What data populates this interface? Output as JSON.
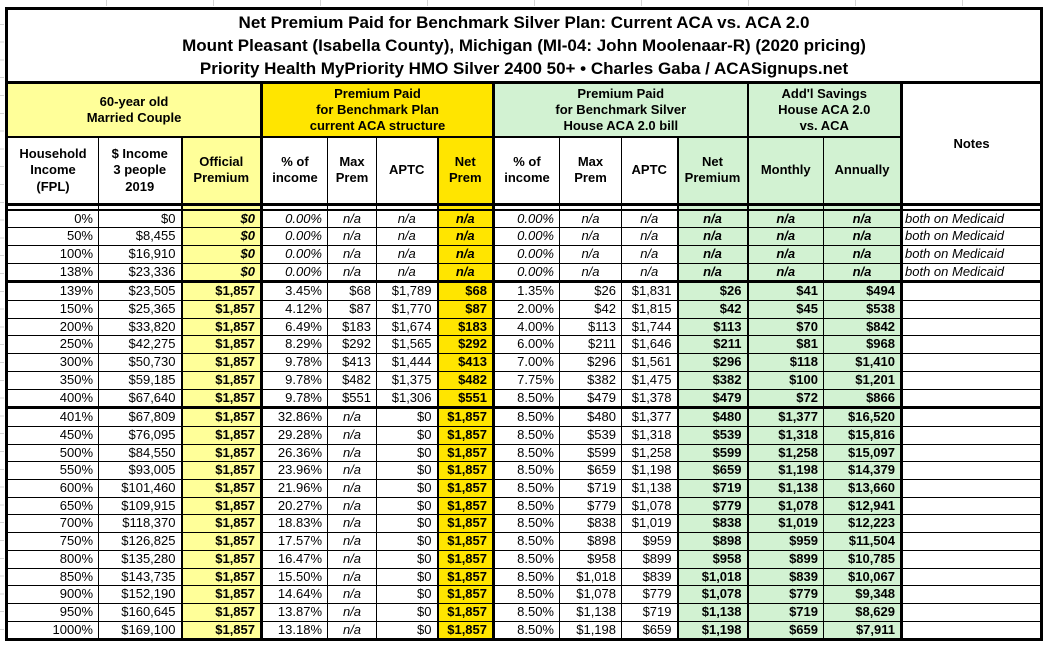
{
  "colors": {
    "light_yellow": "#FFFF99",
    "bright_yellow": "#FFE500",
    "light_green": "#D2F2D2",
    "grid_line": "#D4D4D4",
    "border_black": "#000000"
  },
  "title": {
    "line1": "Net Premium Paid for Benchmark Silver Plan: Current ACA vs. ACA 2.0",
    "line2": "Mount Pleasant (Isabella County), Michigan (MI-04: John Moolenaar-R) (2020 pricing)",
    "line3": "Priority Health MyPriority HMO Silver 2400 50+ • Charles Gaba / ACASignups.net"
  },
  "table": {
    "groups": {
      "demographic": "60-year old\nMarried Couple",
      "current_aca": "Premium Paid\nfor Benchmark Plan\ncurrent ACA structure",
      "aca2": "Premium Paid\nfor Benchmark Silver\nHouse ACA 2.0 bill",
      "savings": "Add'l Savings\nHouse ACA 2.0\nvs. ACA",
      "notes": "Notes"
    },
    "columns": [
      "Household\nIncome\n(FPL)",
      "$ Income\n3 people\n2019",
      "Official\nPremium",
      "% of\nincome",
      "Max\nPrem",
      "APTC",
      "Net\nPrem",
      "% of\nincome",
      "Max\nPrem",
      "APTC",
      "Net\nPremium",
      "Monthly",
      "Annually"
    ],
    "rows": [
      {
        "cells": [
          "0%",
          "$0",
          "$0",
          "0.00%",
          "n/a",
          "n/a",
          "n/a",
          "0.00%",
          "n/a",
          "n/a",
          "n/a",
          "n/a",
          "n/a",
          "both on Medicaid"
        ],
        "medicaid": true
      },
      {
        "cells": [
          "50%",
          "$8,455",
          "$0",
          "0.00%",
          "n/a",
          "n/a",
          "n/a",
          "0.00%",
          "n/a",
          "n/a",
          "n/a",
          "n/a",
          "n/a",
          "both on Medicaid"
        ],
        "medicaid": true
      },
      {
        "cells": [
          "100%",
          "$16,910",
          "$0",
          "0.00%",
          "n/a",
          "n/a",
          "n/a",
          "0.00%",
          "n/a",
          "n/a",
          "n/a",
          "n/a",
          "n/a",
          "both on Medicaid"
        ],
        "medicaid": true
      },
      {
        "cells": [
          "138%",
          "$23,336",
          "$0",
          "0.00%",
          "n/a",
          "n/a",
          "n/a",
          "0.00%",
          "n/a",
          "n/a",
          "n/a",
          "n/a",
          "n/a",
          "both on Medicaid"
        ],
        "medicaid": true
      },
      {
        "cells": [
          "139%",
          "$23,505",
          "$1,857",
          "3.45%",
          "$68",
          "$1,789",
          "$68",
          "1.35%",
          "$26",
          "$1,831",
          "$26",
          "$41",
          "$494",
          ""
        ],
        "thick_top": true
      },
      {
        "cells": [
          "150%",
          "$25,365",
          "$1,857",
          "4.12%",
          "$87",
          "$1,770",
          "$87",
          "2.00%",
          "$42",
          "$1,815",
          "$42",
          "$45",
          "$538",
          ""
        ]
      },
      {
        "cells": [
          "200%",
          "$33,820",
          "$1,857",
          "6.49%",
          "$183",
          "$1,674",
          "$183",
          "4.00%",
          "$113",
          "$1,744",
          "$113",
          "$70",
          "$842",
          ""
        ]
      },
      {
        "cells": [
          "250%",
          "$42,275",
          "$1,857",
          "8.29%",
          "$292",
          "$1,565",
          "$292",
          "6.00%",
          "$211",
          "$1,646",
          "$211",
          "$81",
          "$968",
          ""
        ]
      },
      {
        "cells": [
          "300%",
          "$50,730",
          "$1,857",
          "9.78%",
          "$413",
          "$1,444",
          "$413",
          "7.00%",
          "$296",
          "$1,561",
          "$296",
          "$118",
          "$1,410",
          ""
        ]
      },
      {
        "cells": [
          "350%",
          "$59,185",
          "$1,857",
          "9.78%",
          "$482",
          "$1,375",
          "$482",
          "7.75%",
          "$382",
          "$1,475",
          "$382",
          "$100",
          "$1,201",
          ""
        ]
      },
      {
        "cells": [
          "400%",
          "$67,640",
          "$1,857",
          "9.78%",
          "$551",
          "$1,306",
          "$551",
          "8.50%",
          "$479",
          "$1,378",
          "$479",
          "$72",
          "$866",
          ""
        ]
      },
      {
        "cells": [
          "401%",
          "$67,809",
          "$1,857",
          "32.86%",
          "n/a",
          "$0",
          "$1,857",
          "8.50%",
          "$480",
          "$1,377",
          "$480",
          "$1,377",
          "$16,520",
          ""
        ],
        "thick_top": true
      },
      {
        "cells": [
          "450%",
          "$76,095",
          "$1,857",
          "29.28%",
          "n/a",
          "$0",
          "$1,857",
          "8.50%",
          "$539",
          "$1,318",
          "$539",
          "$1,318",
          "$15,816",
          ""
        ]
      },
      {
        "cells": [
          "500%",
          "$84,550",
          "$1,857",
          "26.36%",
          "n/a",
          "$0",
          "$1,857",
          "8.50%",
          "$599",
          "$1,258",
          "$599",
          "$1,258",
          "$15,097",
          ""
        ]
      },
      {
        "cells": [
          "550%",
          "$93,005",
          "$1,857",
          "23.96%",
          "n/a",
          "$0",
          "$1,857",
          "8.50%",
          "$659",
          "$1,198",
          "$659",
          "$1,198",
          "$14,379",
          ""
        ]
      },
      {
        "cells": [
          "600%",
          "$101,460",
          "$1,857",
          "21.96%",
          "n/a",
          "$0",
          "$1,857",
          "8.50%",
          "$719",
          "$1,138",
          "$719",
          "$1,138",
          "$13,660",
          ""
        ]
      },
      {
        "cells": [
          "650%",
          "$109,915",
          "$1,857",
          "20.27%",
          "n/a",
          "$0",
          "$1,857",
          "8.50%",
          "$779",
          "$1,078",
          "$779",
          "$1,078",
          "$12,941",
          ""
        ]
      },
      {
        "cells": [
          "700%",
          "$118,370",
          "$1,857",
          "18.83%",
          "n/a",
          "$0",
          "$1,857",
          "8.50%",
          "$838",
          "$1,019",
          "$838",
          "$1,019",
          "$12,223",
          ""
        ]
      },
      {
        "cells": [
          "750%",
          "$126,825",
          "$1,857",
          "17.57%",
          "n/a",
          "$0",
          "$1,857",
          "8.50%",
          "$898",
          "$959",
          "$898",
          "$959",
          "$11,504",
          ""
        ]
      },
      {
        "cells": [
          "800%",
          "$135,280",
          "$1,857",
          "16.47%",
          "n/a",
          "$0",
          "$1,857",
          "8.50%",
          "$958",
          "$899",
          "$958",
          "$899",
          "$10,785",
          ""
        ]
      },
      {
        "cells": [
          "850%",
          "$143,735",
          "$1,857",
          "15.50%",
          "n/a",
          "$0",
          "$1,857",
          "8.50%",
          "$1,018",
          "$839",
          "$1,018",
          "$839",
          "$10,067",
          ""
        ]
      },
      {
        "cells": [
          "900%",
          "$152,190",
          "$1,857",
          "14.64%",
          "n/a",
          "$0",
          "$1,857",
          "8.50%",
          "$1,078",
          "$779",
          "$1,078",
          "$779",
          "$9,348",
          ""
        ]
      },
      {
        "cells": [
          "950%",
          "$160,645",
          "$1,857",
          "13.87%",
          "n/a",
          "$0",
          "$1,857",
          "8.50%",
          "$1,138",
          "$719",
          "$1,138",
          "$719",
          "$8,629",
          ""
        ]
      },
      {
        "cells": [
          "1000%",
          "$169,100",
          "$1,857",
          "13.18%",
          "n/a",
          "$0",
          "$1,857",
          "8.50%",
          "$1,198",
          "$659",
          "$1,198",
          "$659",
          "$7,911",
          ""
        ]
      }
    ]
  }
}
